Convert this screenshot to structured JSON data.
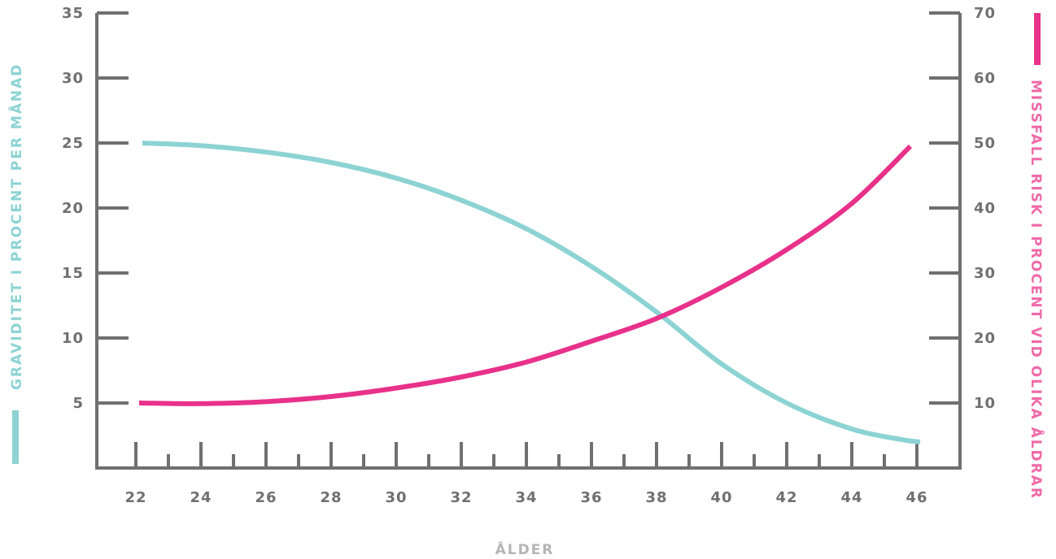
{
  "chart_data": {
    "type": "line",
    "xlabel": "ÅLDER",
    "ylabel_left": "GRAVIDITET I PROCENT PER MÅNAD",
    "ylabel_right": "MISSFALL RISK I PROCENT VID OLIKA ÅLDRAR",
    "x_ticks": [
      22,
      24,
      26,
      28,
      30,
      32,
      34,
      36,
      38,
      40,
      42,
      44,
      46
    ],
    "xlim": [
      22,
      46
    ],
    "y_left_ticks": [
      5,
      10,
      15,
      20,
      25,
      30,
      35
    ],
    "ylim_left": [
      0,
      35
    ],
    "y_right_ticks": [
      10,
      20,
      30,
      40,
      50,
      60,
      70
    ],
    "ylim_right": [
      0,
      70
    ],
    "series": [
      {
        "axis": "left",
        "color": "#8dd3d3",
        "x": [
          22.2,
          24,
          26,
          28,
          30,
          32,
          34,
          36,
          38,
          40,
          42,
          44,
          45.5,
          46.1
        ],
        "values": [
          25,
          24.8,
          24.3,
          23.5,
          22.3,
          20.6,
          18.4,
          15.5,
          12,
          8,
          5,
          3,
          2.2,
          2
        ]
      },
      {
        "axis": "right",
        "color": "#e8318a",
        "x": [
          22.1,
          24,
          26,
          28,
          30,
          32,
          34,
          36,
          38,
          40,
          42,
          44,
          45.8
        ],
        "values": [
          10,
          9.9,
          10.2,
          11,
          12.3,
          14,
          16.3,
          19.5,
          23,
          27.8,
          33.6,
          40.7,
          49.5
        ]
      }
    ],
    "grid": false,
    "colors": {
      "left_axis_title": "#8dd3d3",
      "right_axis_title": "#ef6aa8",
      "axis": "#707070",
      "x_label": "#b5b5b5"
    }
  }
}
